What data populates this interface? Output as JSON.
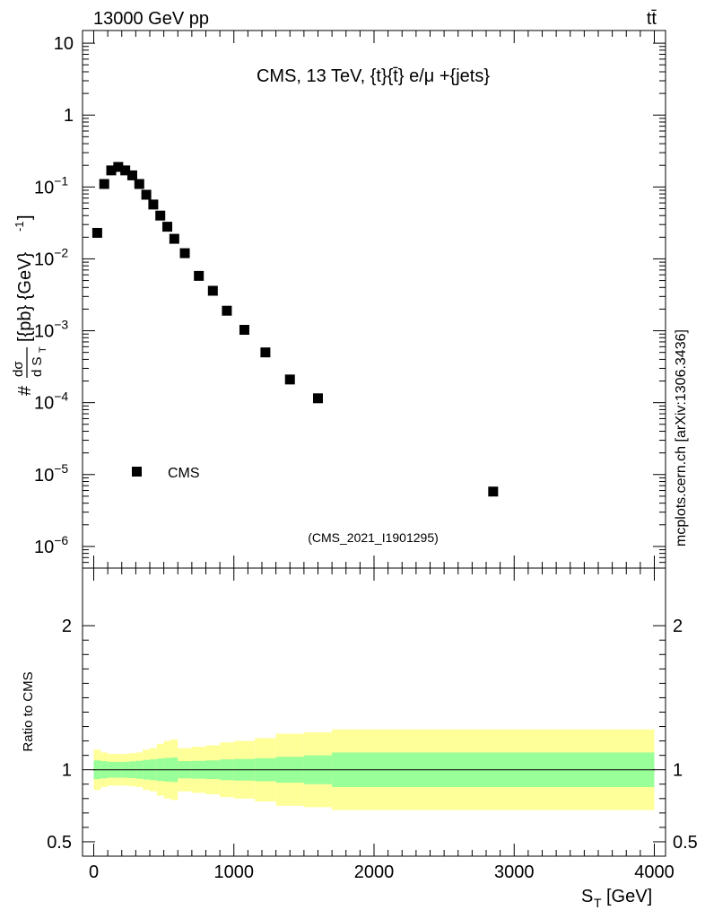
{
  "header": {
    "left": "13000 GeV pp",
    "right": "tt̄"
  },
  "side_label": "mcplots.cern.ch [arXiv:1306.3436]",
  "chart_data": [
    {
      "type": "scatter",
      "panel": "main",
      "title": "CMS, 13 TeV, {t}{t̄} e/μ +{jets}",
      "ylabel_parts": {
        "prefix": "#",
        "num": "dσ",
        "den": "d S",
        "den_sub": "T",
        "unit": "[{pb} {GeV}",
        "unit_sup": "-1",
        "unit_close": "]"
      },
      "yscale": "log",
      "ylim": [
        5e-07,
        15
      ],
      "xlim": [
        -80,
        4080
      ],
      "yticks": [
        {
          "v": 10,
          "m": "10",
          "e": ""
        },
        {
          "v": 1,
          "m": "1",
          "e": ""
        },
        {
          "v": 0.1,
          "m": "10",
          "e": "−1"
        },
        {
          "v": 0.01,
          "m": "10",
          "e": "−2"
        },
        {
          "v": 0.001,
          "m": "10",
          "e": "−3"
        },
        {
          "v": 0.0001,
          "m": "10",
          "e": "−4"
        },
        {
          "v": 1e-05,
          "m": "10",
          "e": "−5"
        },
        {
          "v": 1e-06,
          "m": "10",
          "e": "−6"
        }
      ],
      "series": [
        {
          "name": "CMS",
          "x": [
            25,
            75,
            125,
            175,
            225,
            275,
            325,
            375,
            425,
            475,
            525,
            575,
            650,
            750,
            850,
            950,
            1075,
            1225,
            1400,
            1600,
            2850
          ],
          "y": [
            0.023,
            0.11,
            0.17,
            0.19,
            0.17,
            0.145,
            0.11,
            0.078,
            0.057,
            0.04,
            0.028,
            0.019,
            0.012,
            0.0058,
            0.0036,
            0.0019,
            0.00103,
            0.0005,
            0.00021,
            0.000115,
            5.8e-06
          ]
        }
      ],
      "legend": {
        "label": "CMS",
        "position": "bottom-left"
      },
      "watermark": "(CMS_2021_I1901295)"
    },
    {
      "type": "area",
      "panel": "ratio",
      "ylabel": "Ratio to CMS",
      "xlabel": "S",
      "xlabel_sub": "T",
      "xlabel_unit": "[GeV]",
      "ylim": [
        0.4,
        2.4
      ],
      "xlim": [
        -80,
        4080
      ],
      "yticks": [
        {
          "v": 2,
          "label": "2"
        },
        {
          "v": 1,
          "label": "1"
        },
        {
          "v": 0.5,
          "label": "0.5"
        }
      ],
      "xticks": [
        {
          "v": 0,
          "label": "0"
        },
        {
          "v": 1000,
          "label": "1000"
        },
        {
          "v": 2000,
          "label": "2000"
        },
        {
          "v": 3000,
          "label": "3000"
        },
        {
          "v": 4000,
          "label": "4000"
        }
      ],
      "bins": [
        0,
        50,
        100,
        150,
        200,
        250,
        300,
        350,
        400,
        450,
        500,
        550,
        600,
        700,
        800,
        900,
        1000,
        1150,
        1300,
        1500,
        1700,
        4000
      ],
      "stat_band": [
        0.065,
        0.06,
        0.055,
        0.055,
        0.055,
        0.058,
        0.062,
        0.068,
        0.072,
        0.078,
        0.082,
        0.085,
        0.06,
        0.062,
        0.065,
        0.072,
        0.075,
        0.08,
        0.09,
        0.1,
        0.12
      ],
      "total_band": [
        0.14,
        0.12,
        0.11,
        0.11,
        0.11,
        0.115,
        0.12,
        0.14,
        0.15,
        0.18,
        0.2,
        0.21,
        0.15,
        0.16,
        0.17,
        0.19,
        0.2,
        0.22,
        0.25,
        0.26,
        0.28
      ],
      "reference": 1
    }
  ],
  "colors": {
    "stat_band": "#99ff99",
    "total_band": "#ffff99",
    "marker": "#000000",
    "watermark": "#a9a9a9"
  }
}
